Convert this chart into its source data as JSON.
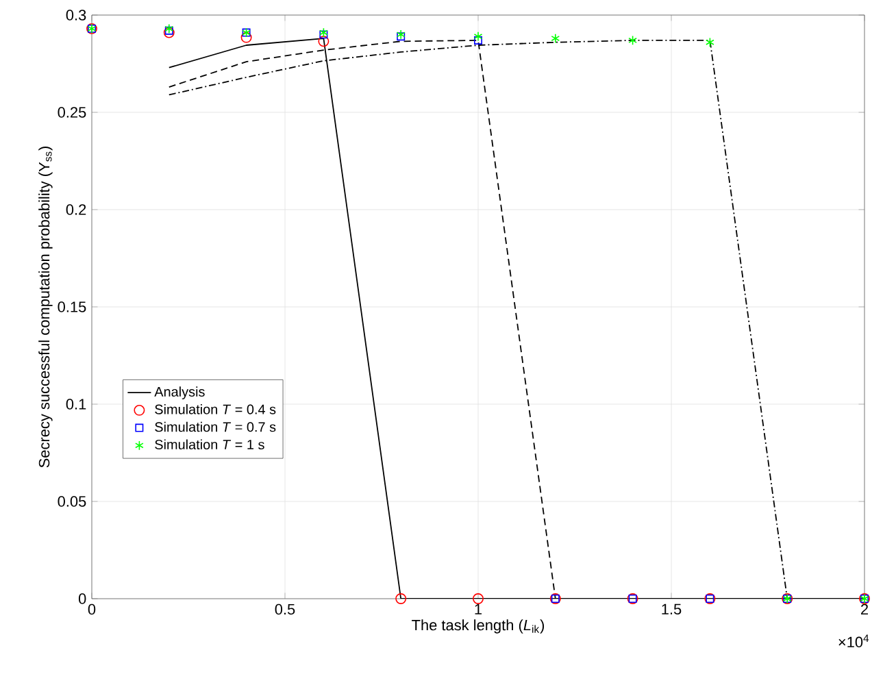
{
  "chart_data": {
    "type": "line",
    "xlabel": "The task length (*L*$_{ik}$)",
    "ylabel": "Secrecy successful computation probability (Υ$_{ss}$)",
    "xlim": [
      0,
      2
    ],
    "ylim": [
      0,
      0.3
    ],
    "xticks": [
      0,
      0.5,
      1,
      1.5,
      2
    ],
    "yticks": [
      0,
      0.05,
      0.1,
      0.15,
      0.2,
      0.25,
      0.3
    ],
    "grid": true,
    "legend": "left",
    "annotations": [
      "×10$^{4}$"
    ],
    "series": [
      {
        "name": "Analysis",
        "color": "#000000",
        "line_style": "solid",
        "marker": "none",
        "x": [
          0.2,
          0.4,
          0.6,
          0.8,
          1,
          1.2,
          1.4,
          1.6,
          1.8,
          2
        ],
        "values": [
          0.273,
          0.2845,
          0.288,
          0,
          0,
          0,
          0,
          0,
          0,
          0
        ]
      },
      {
        "color": "#000000",
        "line_style": "dashed",
        "marker": "none",
        "x": [
          0.2,
          0.4,
          0.6,
          0.8,
          1,
          1.2,
          1.4,
          1.6,
          1.8,
          2
        ],
        "values": [
          0.263,
          0.276,
          0.282,
          0.2865,
          0.287,
          0,
          0,
          0,
          0,
          0
        ]
      },
      {
        "color": "#000000",
        "line_style": "dashdot",
        "marker": "none",
        "x": [
          0.2,
          0.4,
          0.6,
          0.8,
          1,
          1.2,
          1.4,
          1.6,
          1.8,
          2
        ],
        "values": [
          0.259,
          0.268,
          0.2765,
          0.281,
          0.2845,
          0.286,
          0.287,
          0.287,
          0,
          0
        ]
      },
      {
        "name": "Simulation  *T* = 0.4 s",
        "type": "scatter",
        "color": "#ff0000",
        "marker": "circle",
        "x": [
          0,
          0.2,
          0.4,
          0.6,
          0.8,
          1,
          1.2,
          1.4,
          1.6,
          1.8,
          2
        ],
        "values": [
          0.293,
          0.291,
          0.2885,
          0.2865,
          0,
          0,
          0,
          0,
          0,
          0,
          0
        ]
      },
      {
        "name": "Simulation  *T* = 0.7 s",
        "type": "scatter",
        "color": "#0000ff",
        "marker": "square",
        "x": [
          0,
          0.2,
          0.4,
          0.6,
          0.8,
          1,
          1.2,
          1.4,
          1.6,
          1.8,
          2
        ],
        "values": [
          0.293,
          0.292,
          0.291,
          0.29,
          0.289,
          0.287,
          0,
          0,
          0,
          0,
          0
        ]
      },
      {
        "name": "Simulation  *T* = 1 s",
        "type": "scatter",
        "color": "#00ff00",
        "marker": "cross",
        "x": [
          0,
          0.2,
          0.4,
          0.6,
          0.8,
          1,
          1.2,
          1.4,
          1.6,
          1.8,
          2
        ],
        "values": [
          0.293,
          0.293,
          0.291,
          0.291,
          0.29,
          0.289,
          0.288,
          0.287,
          0.286,
          0,
          0
        ]
      }
    ]
  }
}
